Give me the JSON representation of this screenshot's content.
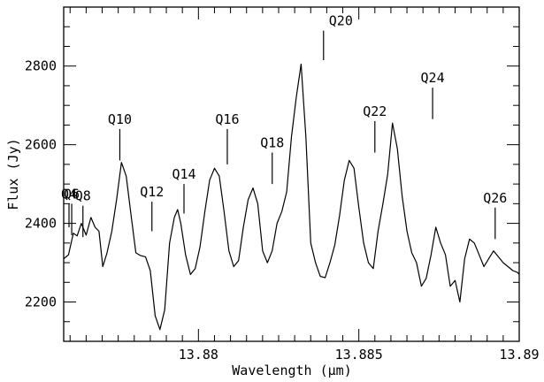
{
  "chart_data": {
    "type": "line",
    "xlabel": "Wavelength (μm)",
    "ylabel": "Flux (Jy)",
    "xlim": [
      13.8758,
      13.89
    ],
    "ylim": [
      2100,
      2950
    ],
    "xticks": [
      {
        "value": 13.88,
        "label": "13.88"
      },
      {
        "value": 13.885,
        "label": "13.885"
      },
      {
        "value": 13.89,
        "label": "13.89"
      }
    ],
    "yticks": [
      {
        "value": 2200,
        "label": "2200"
      },
      {
        "value": 2400,
        "label": "2400"
      },
      {
        "value": 2600,
        "label": "2600"
      },
      {
        "value": 2800,
        "label": "2800"
      }
    ],
    "series": [
      {
        "x": [
          13.8758,
          13.87595,
          13.8761,
          13.87622,
          13.87635,
          13.8765,
          13.87665,
          13.87678,
          13.8769,
          13.87702,
          13.87715,
          13.8773,
          13.87745,
          13.8776,
          13.87775,
          13.8779,
          13.87805,
          13.8782,
          13.87835,
          13.8785,
          13.87865,
          13.8788,
          13.87895,
          13.8791,
          13.87925,
          13.87935,
          13.87945,
          13.8796,
          13.87975,
          13.8799,
          13.88005,
          13.8802,
          13.88035,
          13.8805,
          13.88065,
          13.8808,
          13.88095,
          13.8811,
          13.88125,
          13.8814,
          13.88155,
          13.8817,
          13.88185,
          13.882,
          13.88215,
          13.8823,
          13.88245,
          13.8826,
          13.88275,
          13.8829,
          13.88305,
          13.8832,
          13.88335,
          13.8835,
          13.88365,
          13.8838,
          13.88395,
          13.8841,
          13.88425,
          13.8844,
          13.88455,
          13.8847,
          13.88485,
          13.885,
          13.88515,
          13.8853,
          13.88545,
          13.8856,
          13.88575,
          13.8859,
          13.88605,
          13.8862,
          13.88635,
          13.8865,
          13.88665,
          13.8868,
          13.88695,
          13.8871,
          13.88725,
          13.8874,
          13.88755,
          13.8877,
          13.88785,
          13.888,
          13.88815,
          13.8883,
          13.88845,
          13.8886,
          13.88875,
          13.8889,
          13.88905,
          13.8892,
          13.88935,
          13.8895,
          13.88965,
          13.8898,
          13.88995,
          13.89
        ],
        "y": [
          2310,
          2320,
          2375,
          2368,
          2400,
          2370,
          2415,
          2390,
          2380,
          2290,
          2325,
          2380,
          2460,
          2555,
          2520,
          2420,
          2325,
          2318,
          2315,
          2280,
          2165,
          2130,
          2180,
          2350,
          2415,
          2435,
          2400,
          2320,
          2270,
          2285,
          2340,
          2430,
          2510,
          2540,
          2520,
          2430,
          2330,
          2290,
          2305,
          2390,
          2460,
          2490,
          2450,
          2330,
          2300,
          2330,
          2400,
          2430,
          2480,
          2620,
          2720,
          2805,
          2620,
          2350,
          2300,
          2265,
          2262,
          2300,
          2345,
          2420,
          2510,
          2560,
          2540,
          2440,
          2350,
          2300,
          2285,
          2380,
          2450,
          2525,
          2655,
          2590,
          2470,
          2380,
          2325,
          2300,
          2240,
          2260,
          2320,
          2390,
          2350,
          2320,
          2240,
          2255,
          2200,
          2310,
          2360,
          2350,
          2320,
          2290,
          2310,
          2330,
          2315,
          2300,
          2290,
          2280,
          2275,
          2270
        ]
      }
    ],
    "annotations": [
      {
        "label": "Q4",
        "x": 13.8758,
        "tick_bottom": 2390,
        "tick_top": 2450
      },
      {
        "label": "Q6",
        "x": 13.87605,
        "tick_bottom": 2370,
        "tick_top": 2450
      },
      {
        "label": "Q8",
        "x": 13.8764,
        "tick_bottom": 2365,
        "tick_top": 2445
      },
      {
        "label": "Q10",
        "x": 13.87755,
        "tick_bottom": 2560,
        "tick_top": 2640
      },
      {
        "label": "Q12",
        "x": 13.87855,
        "tick_bottom": 2380,
        "tick_top": 2455
      },
      {
        "label": "Q14",
        "x": 13.87955,
        "tick_bottom": 2425,
        "tick_top": 2500
      },
      {
        "label": "Q16",
        "x": 13.8809,
        "tick_bottom": 2550,
        "tick_top": 2640
      },
      {
        "label": "Q18",
        "x": 13.8823,
        "tick_bottom": 2500,
        "tick_top": 2580
      },
      {
        "label": "Q20",
        "x": 13.8839,
        "tick_bottom": 2815,
        "tick_top": 2890
      },
      {
        "label": "Q22",
        "x": 13.8855,
        "tick_bottom": 2580,
        "tick_top": 2660
      },
      {
        "label": "Q24",
        "x": 13.8873,
        "tick_bottom": 2665,
        "tick_top": 2745
      },
      {
        "label": "Q26",
        "x": 13.88925,
        "tick_bottom": 2360,
        "tick_top": 2440
      }
    ]
  }
}
